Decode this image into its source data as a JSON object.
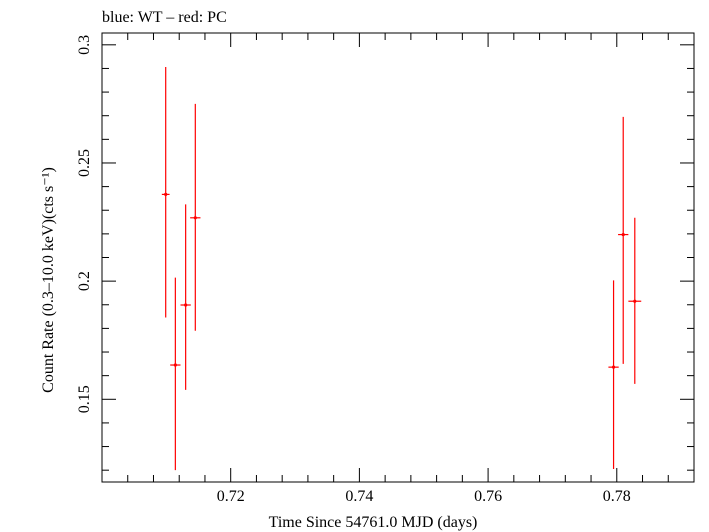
{
  "chart_data": {
    "type": "scatter",
    "title": "blue: WT – red: PC",
    "xlabel": "Time Since 54761.0 MJD (days)",
    "ylabel": "Count Rate (0.3–10.0 keV)(cts s⁻¹)",
    "xlim": [
      0.7,
      0.792
    ],
    "ylim": [
      0.115,
      0.305
    ],
    "x_ticks": [
      0.72,
      0.74,
      0.76,
      0.78
    ],
    "x_tick_labels": [
      "0.72",
      "0.74",
      "0.76",
      "0.78"
    ],
    "y_ticks": [
      0.15,
      0.2,
      0.25,
      0.3
    ],
    "y_tick_labels": [
      "0.15",
      "0.2",
      "0.25",
      "0.3"
    ],
    "series": [
      {
        "name": "PC",
        "color": "#ff0000",
        "points": [
          {
            "x": 0.7099,
            "y": 0.2367,
            "xerr": 0.0006,
            "ylo": 0.1846,
            "yhi": 0.2906
          },
          {
            "x": 0.7114,
            "y": 0.1645,
            "xerr": 0.0008,
            "ylo": 0.12,
            "yhi": 0.2015
          },
          {
            "x": 0.713,
            "y": 0.1899,
            "xerr": 0.0008,
            "ylo": 0.154,
            "yhi": 0.2325
          },
          {
            "x": 0.7145,
            "y": 0.2268,
            "xerr": 0.0008,
            "ylo": 0.179,
            "yhi": 0.275
          },
          {
            "x": 0.7795,
            "y": 0.1636,
            "xerr": 0.0008,
            "ylo": 0.1205,
            "yhi": 0.2003
          },
          {
            "x": 0.781,
            "y": 0.2197,
            "xerr": 0.0008,
            "ylo": 0.165,
            "yhi": 0.2695
          },
          {
            "x": 0.7828,
            "y": 0.1915,
            "xerr": 0.001,
            "ylo": 0.1565,
            "yhi": 0.2268
          }
        ]
      }
    ]
  }
}
